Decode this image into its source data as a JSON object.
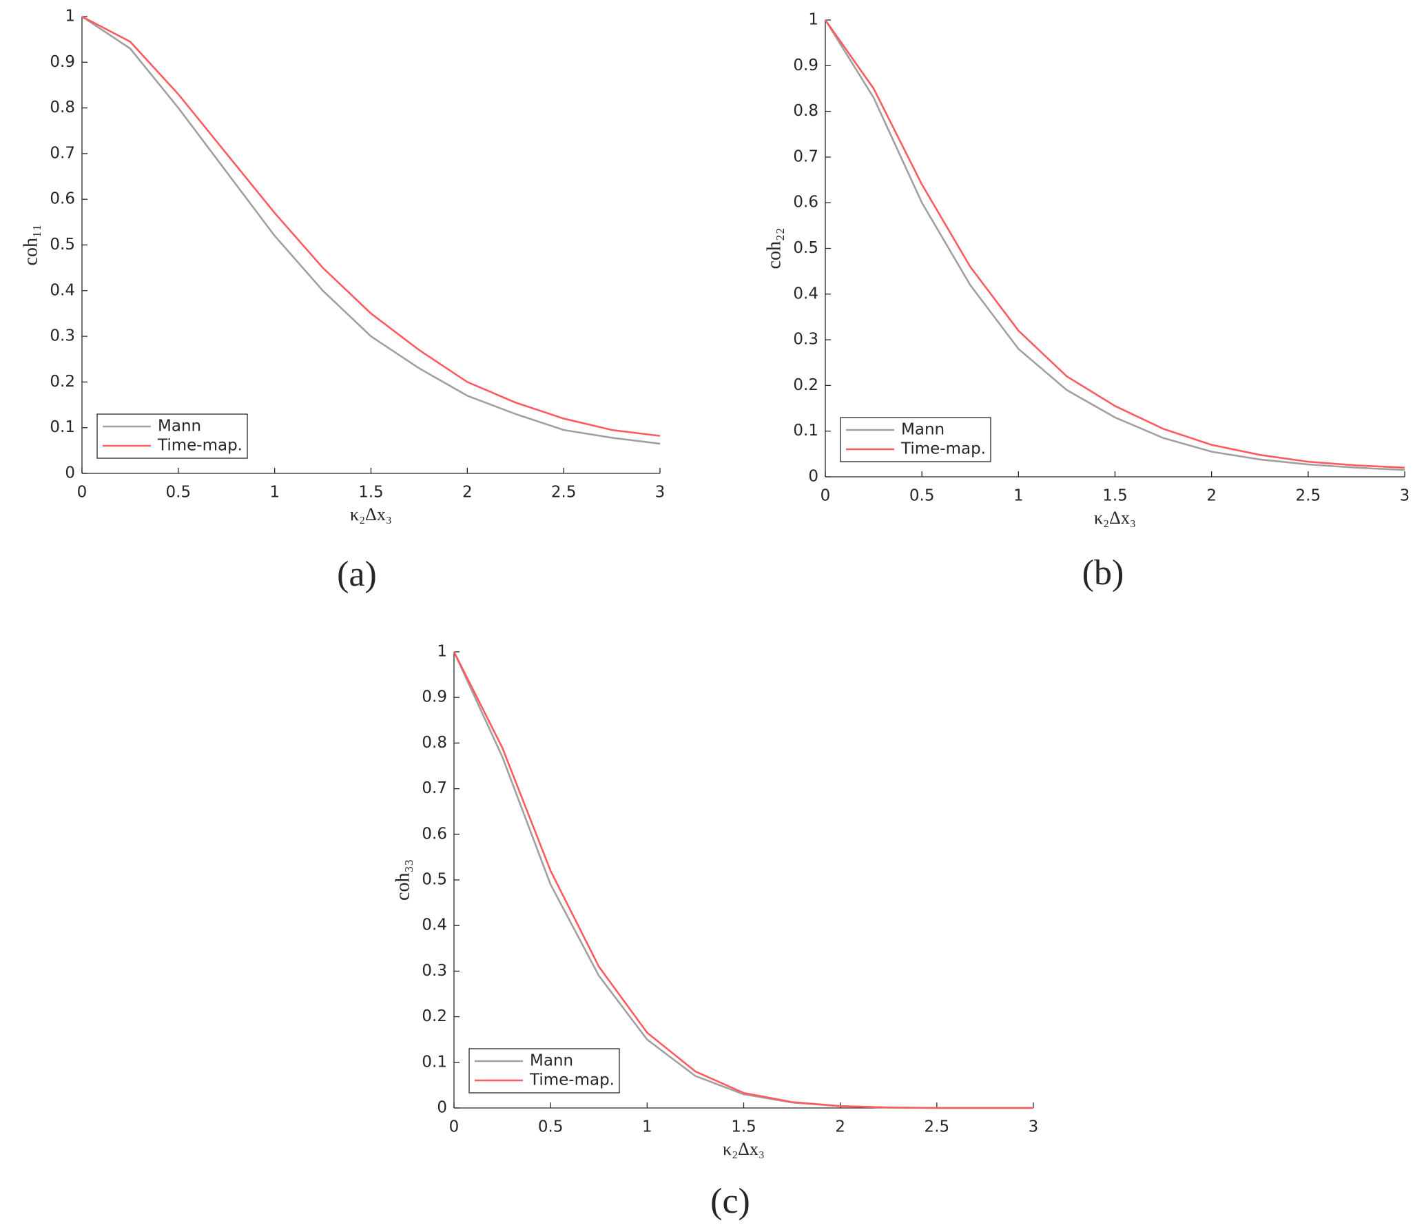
{
  "chart_data": [
    {
      "type": "line",
      "caption": "(a)",
      "x_label": "κ₂Δx₃",
      "y_label": "coh₁₁",
      "x": [
        0,
        0.25,
        0.5,
        0.75,
        1,
        1.25,
        1.5,
        1.75,
        2,
        2.25,
        2.5,
        2.75,
        3
      ],
      "series": [
        {
          "name": "Mann",
          "color": "#a0a0a0",
          "values": [
            1,
            0.93,
            0.8,
            0.66,
            0.52,
            0.4,
            0.3,
            0.23,
            0.17,
            0.13,
            0.095,
            0.078,
            0.065
          ]
        },
        {
          "name": "Time-map.",
          "color": "#ff5a5f",
          "values": [
            1,
            0.945,
            0.83,
            0.7,
            0.57,
            0.45,
            0.35,
            0.27,
            0.2,
            0.155,
            0.12,
            0.095,
            0.082
          ]
        }
      ],
      "xlim": [
        0,
        3
      ],
      "ylim": [
        0,
        1
      ],
      "xticks": [
        0,
        0.5,
        1,
        1.5,
        2,
        2.5,
        3
      ],
      "yticks": [
        0,
        0.1,
        0.2,
        0.3,
        0.4,
        0.5,
        0.6,
        0.7,
        0.8,
        0.9,
        1
      ],
      "legend": "lower left"
    },
    {
      "type": "line",
      "caption": "(b)",
      "x_label": "κ₂Δx₃",
      "y_label": "coh₂₂",
      "x": [
        0,
        0.25,
        0.5,
        0.75,
        1,
        1.25,
        1.5,
        1.75,
        2,
        2.25,
        2.5,
        2.75,
        3
      ],
      "series": [
        {
          "name": "Mann",
          "color": "#a0a0a0",
          "values": [
            1,
            0.83,
            0.6,
            0.42,
            0.28,
            0.19,
            0.13,
            0.085,
            0.055,
            0.038,
            0.027,
            0.02,
            0.015
          ]
        },
        {
          "name": "Time-map.",
          "color": "#ff5a5f",
          "values": [
            1,
            0.85,
            0.64,
            0.46,
            0.32,
            0.22,
            0.155,
            0.105,
            0.07,
            0.048,
            0.033,
            0.025,
            0.02
          ]
        }
      ],
      "xlim": [
        0,
        3
      ],
      "ylim": [
        0,
        1
      ],
      "xticks": [
        0,
        0.5,
        1,
        1.5,
        2,
        2.5,
        3
      ],
      "yticks": [
        0,
        0.1,
        0.2,
        0.3,
        0.4,
        0.5,
        0.6,
        0.7,
        0.8,
        0.9,
        1
      ],
      "legend": "lower left"
    },
    {
      "type": "line",
      "caption": "(c)",
      "x_label": "κ₂Δx₃",
      "y_label": "coh₃₃",
      "x": [
        0,
        0.25,
        0.5,
        0.75,
        1,
        1.25,
        1.5,
        1.75,
        2,
        2.25,
        2.5,
        2.75,
        3
      ],
      "series": [
        {
          "name": "Mann",
          "color": "#a0a0a0",
          "values": [
            1,
            0.77,
            0.49,
            0.29,
            0.15,
            0.07,
            0.03,
            0.012,
            0.004,
            0.001,
            0,
            0,
            0
          ]
        },
        {
          "name": "Time-map.",
          "color": "#ff5a5f",
          "values": [
            1,
            0.79,
            0.52,
            0.31,
            0.165,
            0.08,
            0.033,
            0.013,
            0.004,
            0.001,
            0,
            0,
            0
          ]
        }
      ],
      "xlim": [
        0,
        3
      ],
      "ylim": [
        0,
        1
      ],
      "xticks": [
        0,
        0.5,
        1,
        1.5,
        2,
        2.5,
        3
      ],
      "yticks": [
        0,
        0.1,
        0.2,
        0.3,
        0.4,
        0.5,
        0.6,
        0.7,
        0.8,
        0.9,
        1
      ],
      "legend": "lower left"
    }
  ]
}
